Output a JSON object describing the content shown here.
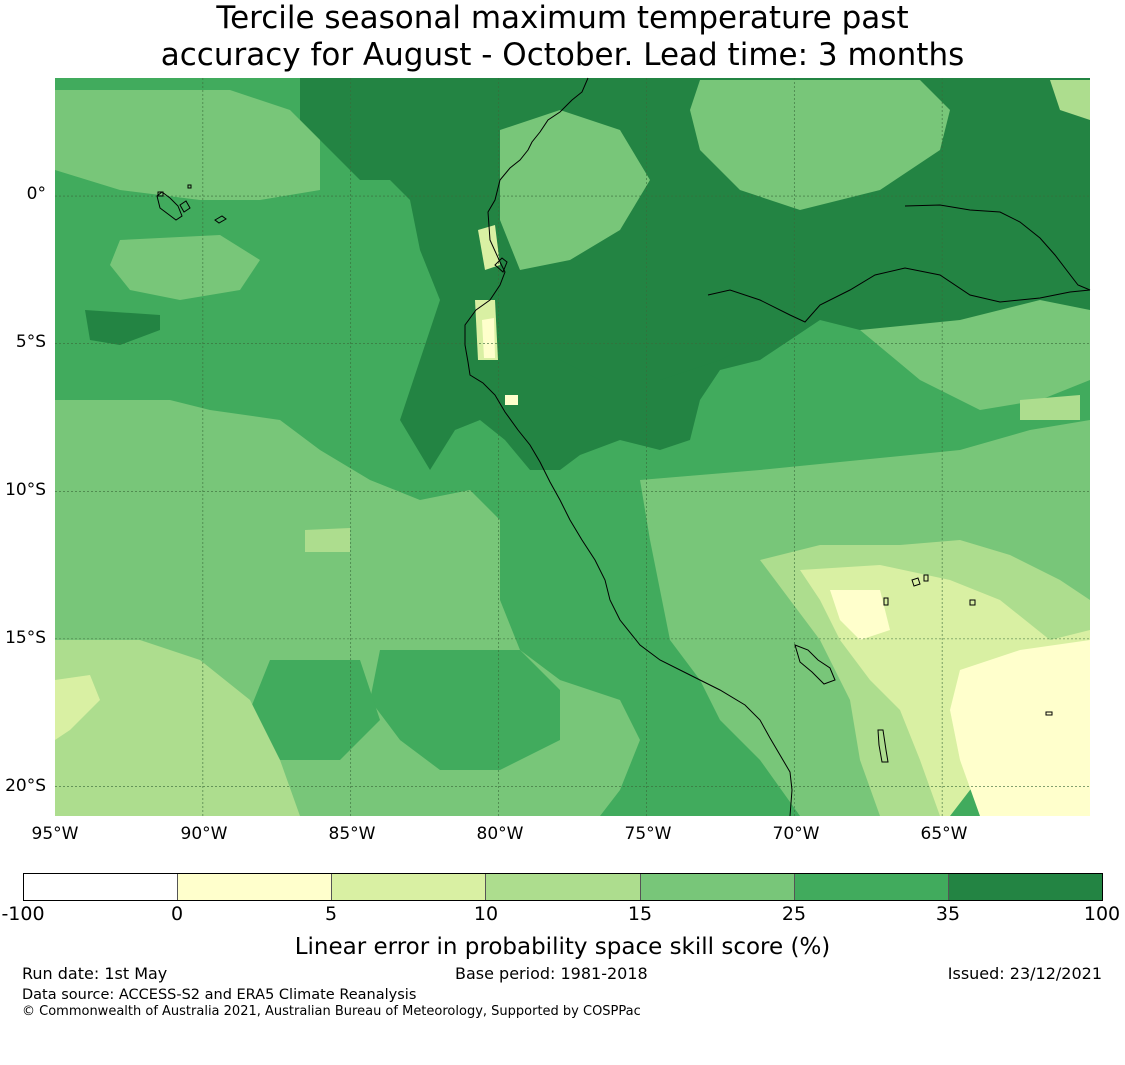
{
  "title_line1": "Tercile seasonal maximum temperature past",
  "title_line2": "accuracy for August - October. Lead time: 3 months",
  "map": {
    "lon_range": [
      -95,
      -60
    ],
    "lat_range": [
      -21,
      4
    ],
    "lat_labels": [
      "0°",
      "5°S",
      "10°S",
      "15°S",
      "20°S"
    ],
    "lon_labels": [
      "95°W",
      "90°W",
      "85°W",
      "80°W",
      "75°W",
      "70°W",
      "65°W"
    ]
  },
  "colorbar": {
    "colors": [
      "#ffffff",
      "#ffffcc",
      "#d9f0a3",
      "#addd8e",
      "#78c679",
      "#41ab5d",
      "#238443"
    ],
    "ticks": [
      "-100",
      "0",
      "5",
      "10",
      "15",
      "25",
      "35",
      "100"
    ],
    "label": "Linear error in probability space skill score (%)"
  },
  "footer": {
    "run_date": "Run date: 1st May",
    "base_period": "Base period: 1981-2018",
    "issued": "Issued: 23/12/2021",
    "data_source": "Data source: ACCESS-S2 and ERA5 Climate Reanalysis",
    "copyright": "© Commonwealth of Australia 2021, Australian Bureau of Meteorology, Supported by COSPPac"
  }
}
